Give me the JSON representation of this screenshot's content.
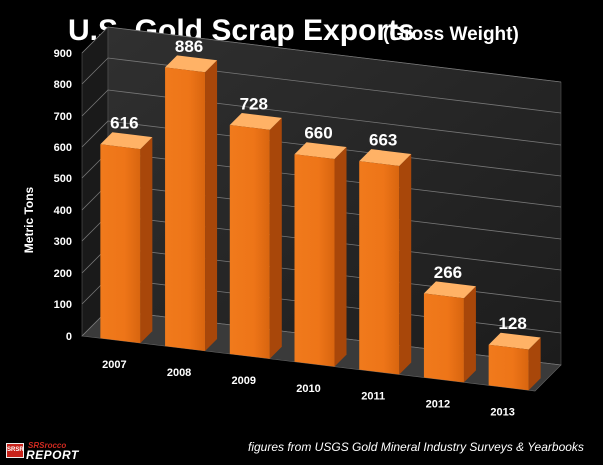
{
  "chart_data": {
    "type": "bar",
    "title": "U.S. Gold Scrap Exports",
    "subtitle": "(Gross Weight)",
    "ylabel": "Metric Tons",
    "xlabel": "",
    "categories": [
      "2007",
      "2008",
      "2009",
      "2010",
      "2011",
      "2012",
      "2013"
    ],
    "values": [
      616,
      886,
      728,
      660,
      663,
      266,
      128
    ],
    "data_labels": [
      "616",
      "886",
      "728",
      "660",
      "663",
      "266",
      "128"
    ],
    "ylim": [
      0,
      900
    ],
    "yticks": [
      "0",
      "100",
      "200",
      "300",
      "400",
      "500",
      "600",
      "700",
      "800",
      "900"
    ],
    "grid": true,
    "legend": "none",
    "style": "3d-column",
    "colors": {
      "bar_front": "#ee7518",
      "bar_side": "#a8470a",
      "bar_top": "#ffb266",
      "background": "#000000",
      "wall": "#2a2a2a",
      "grid": "#777777",
      "text": "#ffffff"
    }
  },
  "footer": {
    "source": "figures from USGS Gold Mineral Industry Surveys & Yearbooks"
  },
  "logo": {
    "badge": "SRSR",
    "top": "SRSrocco",
    "bottom": "REPORT"
  }
}
